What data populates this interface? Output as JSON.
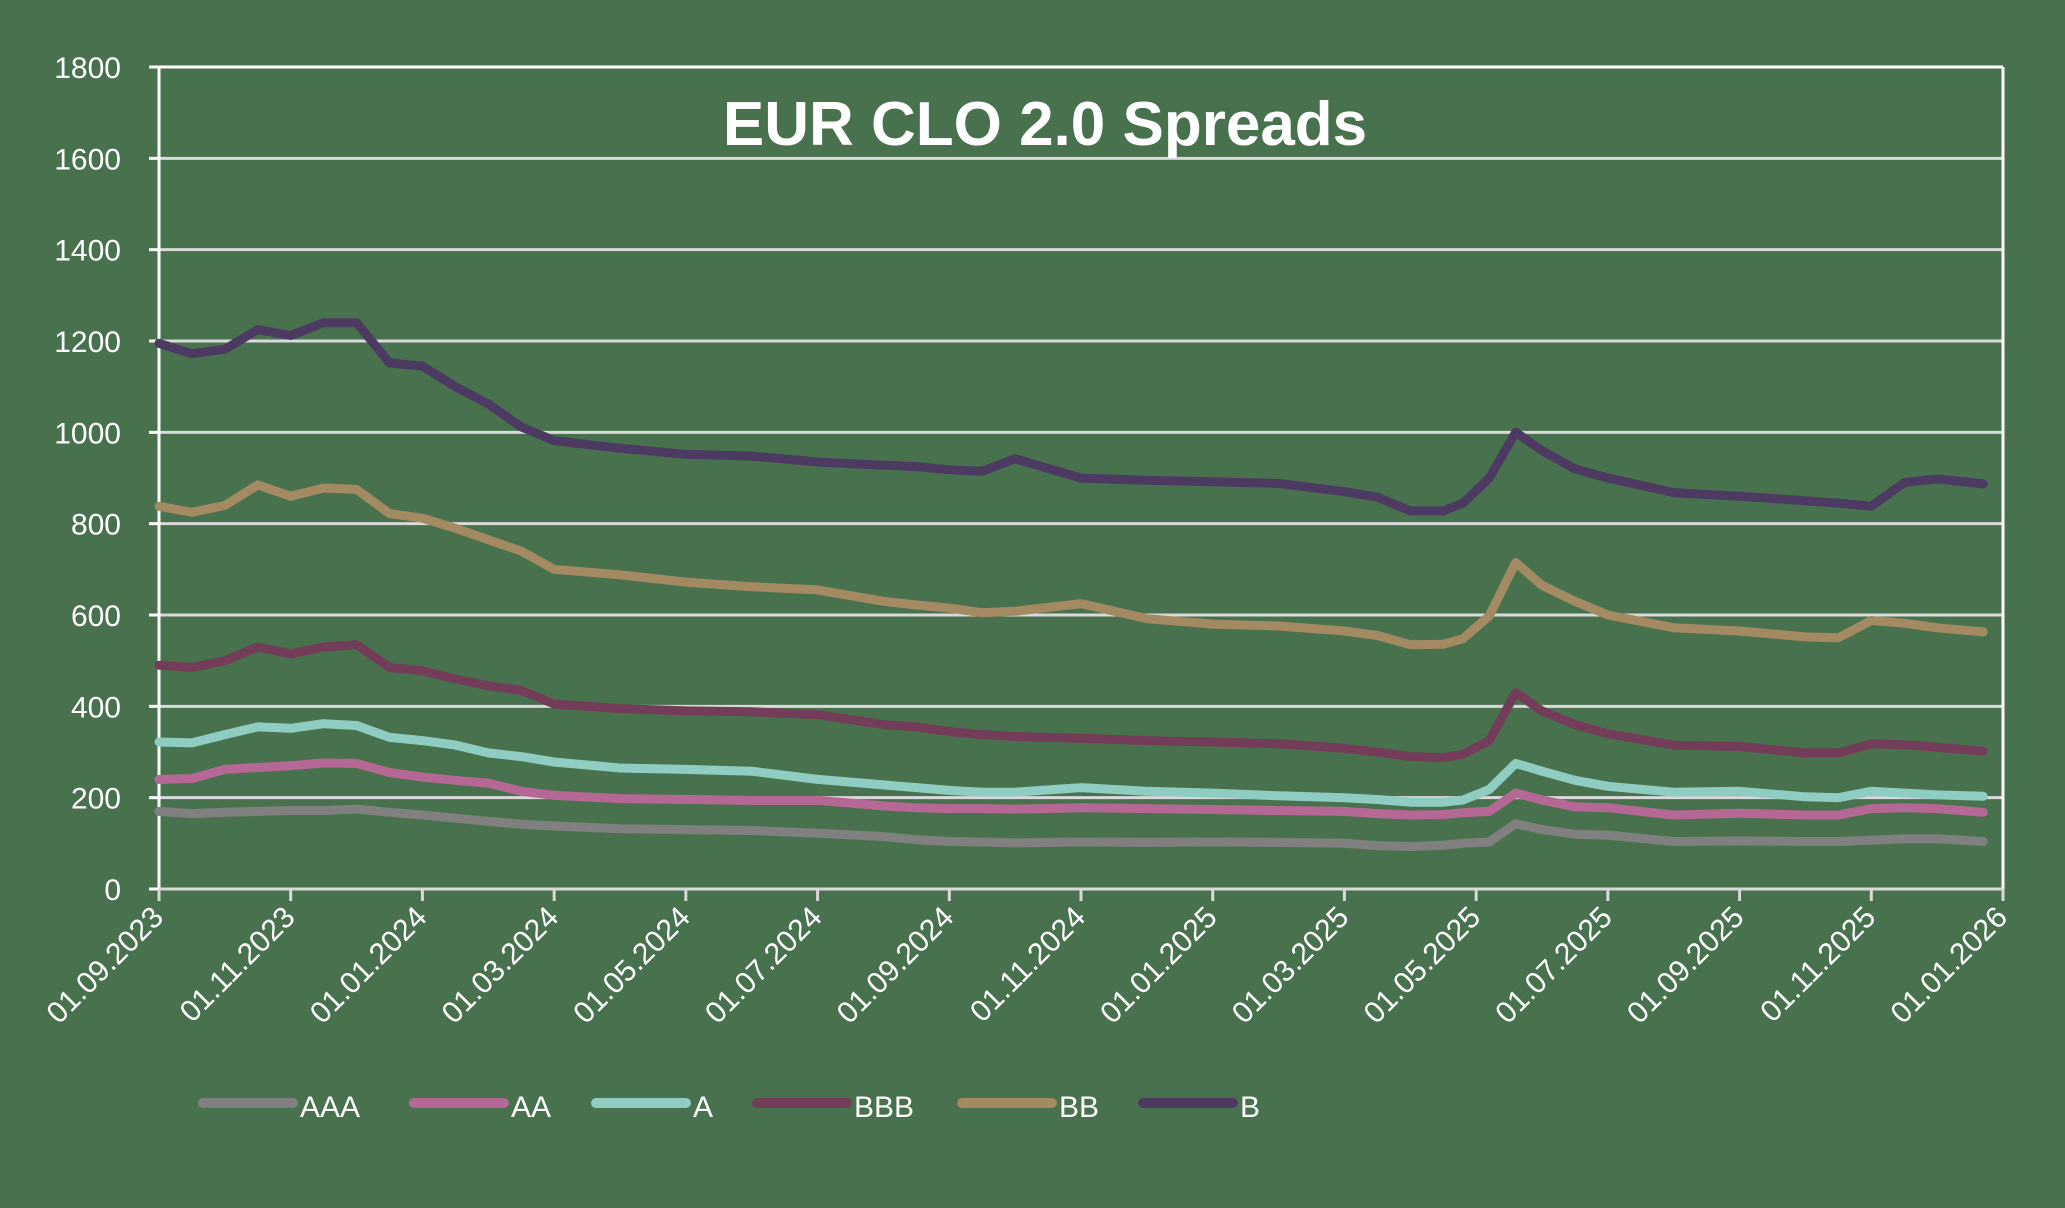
{
  "chart_data": {
    "type": "line",
    "title": "EUR CLO 2.0 Spreads",
    "xlabel": "",
    "ylabel": "",
    "ylim": [
      0,
      1800
    ],
    "yticks": [
      0,
      200,
      400,
      600,
      800,
      1000,
      1200,
      1400,
      1600,
      1800
    ],
    "xlim_months": [
      0,
      28
    ],
    "xtick_labels": [
      "01.09.2023",
      "01.11.2023",
      "01.01.2024",
      "01.03.2024",
      "01.05.2024",
      "01.07.2024",
      "01.09.2024",
      "01.11.2024",
      "01.01.2025",
      "01.03.2025",
      "01.05.2025",
      "01.07.2025",
      "01.09.2025",
      "01.11.2025",
      "01.01.2026"
    ],
    "grid": true,
    "legend_position": "bottom",
    "x_unit": "months since 01.09.2023",
    "x": [
      0,
      0.5,
      1,
      1.5,
      2,
      2.5,
      3,
      3.5,
      4,
      4.5,
      5,
      5.5,
      6,
      7,
      8,
      9,
      10,
      11,
      11.5,
      12,
      12.5,
      13,
      14,
      15,
      16,
      17,
      18,
      18.5,
      19,
      19.5,
      19.8,
      20.2,
      20.6,
      21,
      21.5,
      22,
      23,
      24,
      25,
      25.5,
      26,
      26.5,
      27,
      27.7
    ],
    "series": [
      {
        "name": "AAA",
        "color": "#808080",
        "values": [
          170,
          165,
          168,
          170,
          172,
          172,
          175,
          168,
          162,
          155,
          148,
          142,
          138,
          132,
          130,
          128,
          122,
          115,
          108,
          104,
          103,
          101,
          103,
          102,
          103,
          102,
          100,
          95,
          93,
          96,
          100,
          103,
          143,
          130,
          120,
          118,
          104,
          105,
          104,
          104,
          107,
          110,
          110,
          104
        ]
      },
      {
        "name": "AA",
        "color": "#B66895",
        "values": [
          240,
          242,
          262,
          266,
          270,
          276,
          275,
          255,
          245,
          238,
          232,
          214,
          205,
          198,
          196,
          194,
          194,
          182,
          178,
          176,
          176,
          175,
          178,
          176,
          174,
          172,
          170,
          165,
          162,
          163,
          167,
          170,
          210,
          195,
          180,
          178,
          162,
          166,
          162,
          162,
          176,
          178,
          176,
          168
        ]
      },
      {
        "name": "A",
        "color": "#8FCDC3",
        "values": [
          322,
          320,
          338,
          355,
          352,
          362,
          358,
          332,
          325,
          315,
          298,
          290,
          278,
          265,
          262,
          258,
          240,
          228,
          222,
          216,
          212,
          212,
          222,
          214,
          210,
          204,
          200,
          196,
          190,
          190,
          195,
          218,
          275,
          258,
          238,
          225,
          212,
          214,
          202,
          200,
          214,
          210,
          206,
          203
        ]
      },
      {
        "name": "BBB",
        "color": "#733D5A",
        "values": [
          490,
          485,
          500,
          530,
          515,
          530,
          535,
          485,
          478,
          460,
          445,
          435,
          405,
          395,
          390,
          388,
          382,
          360,
          355,
          345,
          338,
          334,
          330,
          325,
          322,
          318,
          308,
          300,
          290,
          288,
          295,
          325,
          430,
          390,
          360,
          340,
          315,
          312,
          298,
          298,
          318,
          316,
          310,
          302
        ]
      },
      {
        "name": "BB",
        "color": "#A38A62",
        "values": [
          838,
          825,
          840,
          885,
          860,
          878,
          875,
          822,
          812,
          790,
          765,
          740,
          700,
          688,
          672,
          662,
          655,
          630,
          622,
          615,
          605,
          608,
          625,
          592,
          580,
          576,
          565,
          555,
          535,
          536,
          548,
          598,
          715,
          665,
          630,
          600,
          572,
          565,
          552,
          550,
          588,
          582,
          572,
          563
        ]
      },
      {
        "name": "B",
        "color": "#4D3A62",
        "values": [
          1195,
          1172,
          1182,
          1225,
          1212,
          1240,
          1240,
          1152,
          1145,
          1100,
          1062,
          1012,
          982,
          965,
          952,
          948,
          935,
          928,
          925,
          918,
          915,
          942,
          900,
          895,
          892,
          888,
          870,
          858,
          828,
          828,
          845,
          900,
          1000,
          960,
          920,
          900,
          868,
          860,
          850,
          845,
          838,
          890,
          898,
          887
        ]
      }
    ]
  }
}
